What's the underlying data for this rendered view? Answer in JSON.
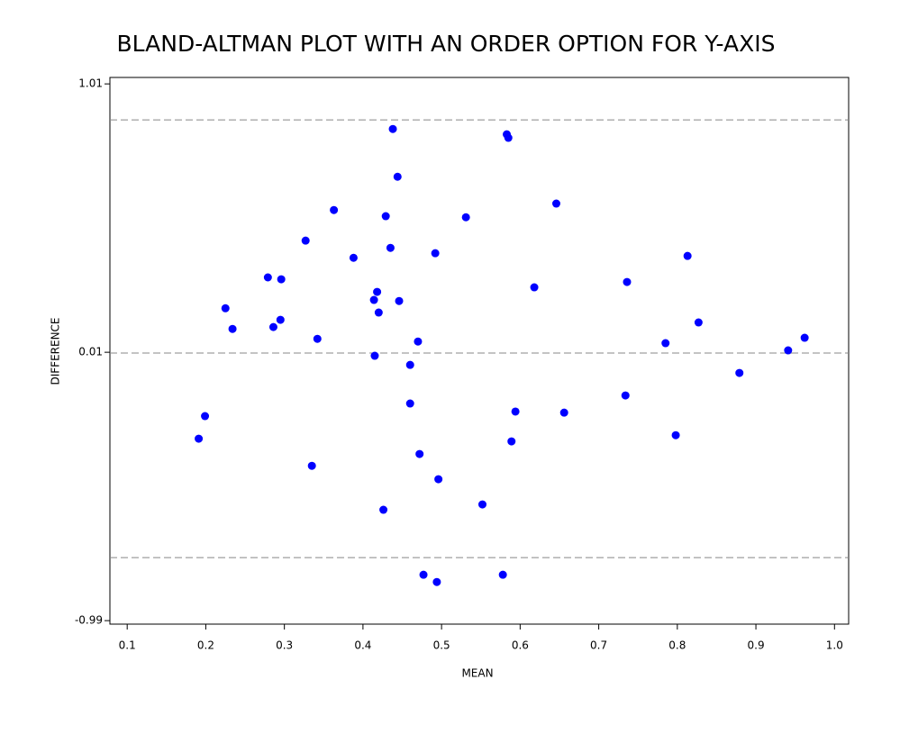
{
  "chart_data": {
    "type": "scatter",
    "title": "BLAND-ALTMAN PLOT WITH AN ORDER OPTION FOR Y-AXIS",
    "x_label": "MEAN",
    "y_label": "DIFFERENCE",
    "xlim": [
      0.078,
      1.018
    ],
    "ylim": [
      -1.003,
      1.034
    ],
    "xticks": [
      0.1,
      0.2,
      0.3,
      0.4,
      0.5,
      0.6,
      0.7,
      0.8,
      0.9,
      {
        "value": 1,
        "label": "1.0"
      }
    ],
    "yticks": [
      -0.99,
      0.01,
      1.01
    ],
    "reference_lines": [
      0.876,
      0.007,
      -0.755
    ],
    "grid": false,
    "series": [
      {
        "color": "#0000ff",
        "x": [
          0.438,
          0.583,
          0.585,
          0.444,
          0.646,
          0.363,
          0.429,
          0.531,
          0.327,
          0.435,
          0.492,
          0.388,
          0.813,
          0.279,
          0.296,
          0.618,
          0.736,
          0.418,
          0.414,
          0.446,
          0.225,
          0.42,
          0.295,
          0.827,
          0.286,
          0.234,
          0.342,
          0.47,
          0.962,
          0.785,
          0.941,
          0.415,
          0.46,
          0.879,
          0.734,
          0.46,
          0.594,
          0.199,
          0.656,
          0.191,
          0.798,
          0.589,
          0.472,
          0.335,
          0.496,
          0.552,
          0.426,
          0.477,
          0.578,
          0.494
        ],
        "values": [
          0.842,
          0.822,
          0.809,
          0.664,
          0.564,
          0.54,
          0.517,
          0.513,
          0.426,
          0.399,
          0.379,
          0.362,
          0.369,
          0.289,
          0.282,
          0.252,
          0.272,
          0.235,
          0.205,
          0.201,
          0.174,
          0.158,
          0.131,
          0.121,
          0.104,
          0.097,
          0.06,
          0.05,
          0.064,
          0.044,
          0.017,
          -0.003,
          -0.037,
          -0.067,
          -0.151,
          -0.181,
          -0.211,
          -0.228,
          -0.215,
          -0.312,
          -0.299,
          -0.322,
          -0.369,
          -0.413,
          -0.463,
          -0.557,
          -0.577,
          -0.819,
          -0.819,
          -0.846
        ]
      }
    ]
  }
}
